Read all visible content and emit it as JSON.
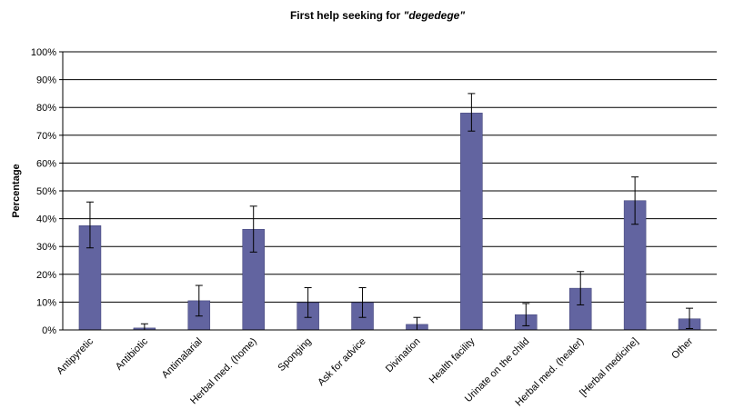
{
  "chart_data": {
    "type": "bar",
    "title_main": "First help seeking for ",
    "title_emph": "\"degedege\"",
    "xlabel": "",
    "ylabel": "Percentage",
    "ylim": [
      0,
      100
    ],
    "yticks": [
      "0%",
      "10%",
      "20%",
      "30%",
      "40%",
      "50%",
      "60%",
      "70%",
      "80%",
      "90%",
      "100%"
    ],
    "grid": true,
    "bar_color": "#6264A0",
    "categories": [
      "Antipyretic",
      "Antibiotic",
      "Antimalarial",
      "Herbal med. (home)",
      "Sponging",
      "Ask for advice",
      "Divination",
      "Health facility",
      "Urinate on the child",
      "Herbal med. (healer)",
      "[Herbal medicine]",
      "Other"
    ],
    "values": [
      37.5,
      0.7,
      10.5,
      36.2,
      9.8,
      9.8,
      2.0,
      78.0,
      5.5,
      15.0,
      46.5,
      4.0
    ],
    "error_low": [
      29.5,
      0,
      5.0,
      28.0,
      4.5,
      4.5,
      0,
      71.5,
      1.5,
      9.0,
      38.0,
      0.5
    ],
    "error_high": [
      46.0,
      2.2,
      16.0,
      44.5,
      15.2,
      15.2,
      4.5,
      85.0,
      9.5,
      21.0,
      55.0,
      7.8
    ]
  }
}
